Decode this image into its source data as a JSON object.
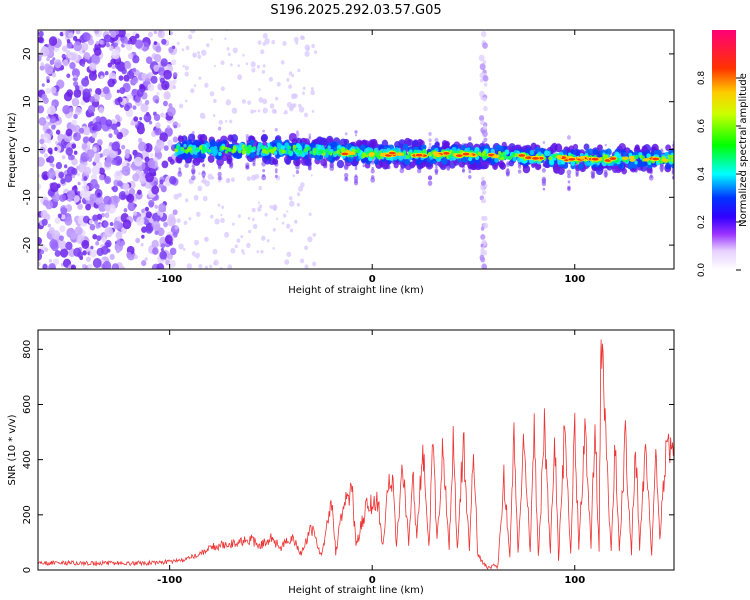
{
  "page_title": "S196.2025.292.03.57.G05",
  "chart_data": [
    {
      "type": "heatmap",
      "title": "S196.2025.292.03.57.G05",
      "xlabel": "Height of straight line (km)",
      "ylabel": "Frequency (Hz)",
      "xlim": [
        -165,
        149
      ],
      "ylim": [
        -25,
        25
      ],
      "xticks": [
        -100,
        0,
        100
      ],
      "xtick_labels": [
        "-100",
        "0",
        "100"
      ],
      "yticks": [
        -20,
        -10,
        0,
        10,
        20
      ],
      "ytick_labels": [
        "-20",
        "-10",
        "0",
        "10",
        "20"
      ],
      "colorbar": {
        "label": "Normalized spectral amplitude",
        "range": [
          0,
          1
        ],
        "ticks": [
          0.0,
          0.2,
          0.4,
          0.6,
          0.8
        ],
        "tick_labels": [
          "0.0",
          "0.2",
          "0.4",
          "0.6",
          "0.8"
        ],
        "colors": [
          "#ffffff",
          "#cc99ff",
          "#6600ee",
          "#0000ff",
          "#00ffff",
          "#00ff00",
          "#ffff00",
          "#ff8800",
          "#ff0000",
          "#ff0066"
        ]
      },
      "features": {
        "noise_region_km": [
          -165,
          -97
        ],
        "signal_band_center_hz": [
          [
            -97,
            0
          ],
          [
            -40,
            0
          ],
          [
            0,
            -1
          ],
          [
            50,
            -1
          ],
          [
            100,
            -2
          ],
          [
            149,
            -2
          ]
        ],
        "vertical_streak_km": 55
      }
    },
    {
      "type": "line",
      "xlabel": "Height of straight line (km)",
      "ylabel": "SNR (10 * v/v)",
      "xlim": [
        -165,
        149
      ],
      "ylim": [
        0,
        870
      ],
      "xticks": [
        -100,
        0,
        100
      ],
      "xtick_labels": [
        "-100",
        "0",
        "100"
      ],
      "yticks": [
        0,
        200,
        400,
        600,
        800
      ],
      "ytick_labels": [
        "0",
        "200",
        "400",
        "600",
        "800"
      ],
      "series_color": "#ee3333",
      "series": [
        {
          "name": "SNR",
          "x": [
            -165,
            -150,
            -135,
            -120,
            -110,
            -100,
            -95,
            -90,
            -85,
            -80,
            -75,
            -70,
            -65,
            -60,
            -55,
            -50,
            -45,
            -40,
            -35,
            -30,
            -25,
            -20,
            -18,
            -15,
            -10,
            -8,
            -5,
            -2,
            0,
            3,
            5,
            8,
            10,
            12,
            15,
            18,
            20,
            22,
            25,
            28,
            30,
            32,
            35,
            38,
            40,
            42,
            45,
            48,
            50,
            52,
            55,
            57,
            60,
            62,
            65,
            68,
            70,
            72,
            75,
            78,
            80,
            82,
            85,
            88,
            90,
            92,
            95,
            98,
            100,
            102,
            105,
            108,
            110,
            112,
            113,
            115,
            118,
            120,
            122,
            125,
            128,
            130,
            132,
            135,
            138,
            140,
            142,
            145,
            147,
            149
          ],
          "y": [
            25,
            25,
            25,
            25,
            25,
            30,
            35,
            45,
            60,
            80,
            90,
            95,
            100,
            110,
            90,
            115,
            80,
            120,
            60,
            150,
            50,
            260,
            60,
            200,
            300,
            80,
            180,
            240,
            230,
            260,
            80,
            300,
            320,
            90,
            380,
            100,
            380,
            110,
            440,
            90,
            460,
            100,
            460,
            80,
            480,
            70,
            470,
            60,
            480,
            60,
            20,
            10,
            15,
            10,
            330,
            50,
            460,
            60,
            470,
            70,
            490,
            50,
            500,
            60,
            510,
            40,
            500,
            60,
            520,
            70,
            510,
            80,
            520,
            60,
            860,
            500,
            60,
            480,
            60,
            470,
            60,
            460,
            80,
            440,
            60,
            430,
            100,
            450,
            470,
            460
          ]
        }
      ]
    }
  ]
}
